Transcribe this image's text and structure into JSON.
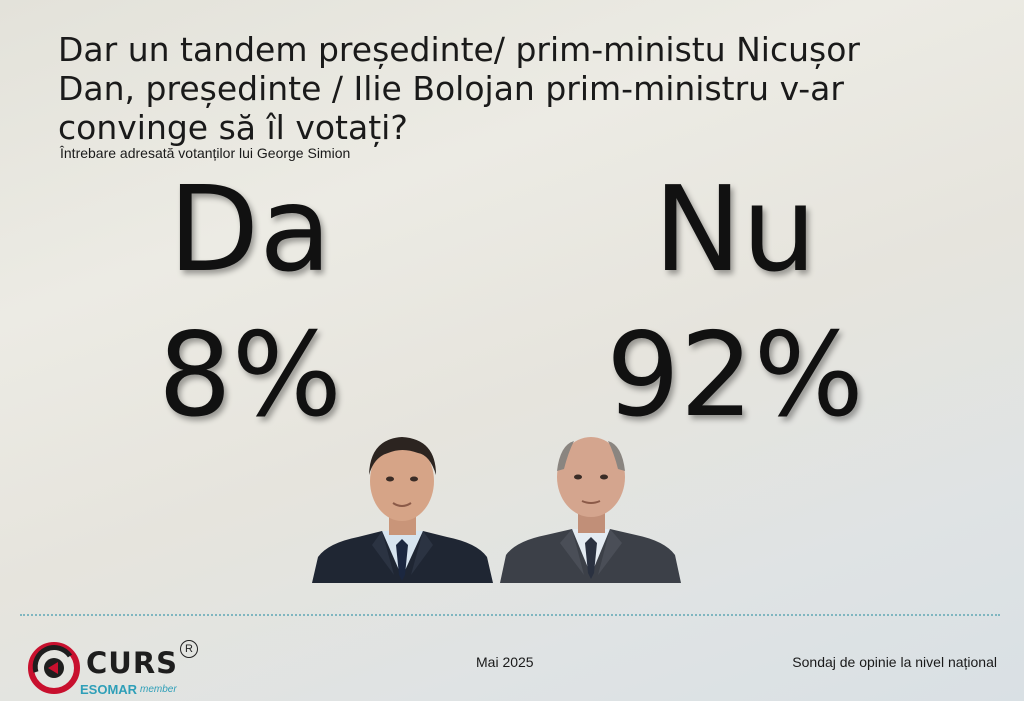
{
  "question": {
    "title": "Dar un tandem președinte/ prim-ministu  Nicușor\nDan, președinte / Ilie Bolojan prim-ministru v-ar\nconvinge  să îl votați?",
    "subtitle": "Întrebare adresată votanților lui George Simion"
  },
  "results": [
    {
      "label": "Da",
      "value": "8%"
    },
    {
      "label": "Nu",
      "value": "92%"
    }
  ],
  "footer": {
    "brand": "CURS",
    "registered_mark": "R",
    "esomar": "ESOMAR",
    "member": "member",
    "date": "Mai 2025",
    "survey": "Sondaj de opinie la nivel național"
  },
  "colors": {
    "text": "#121212",
    "accent": "#2e9fb8",
    "logo_red": "#c8102e",
    "divider": "#7fb6c0"
  }
}
